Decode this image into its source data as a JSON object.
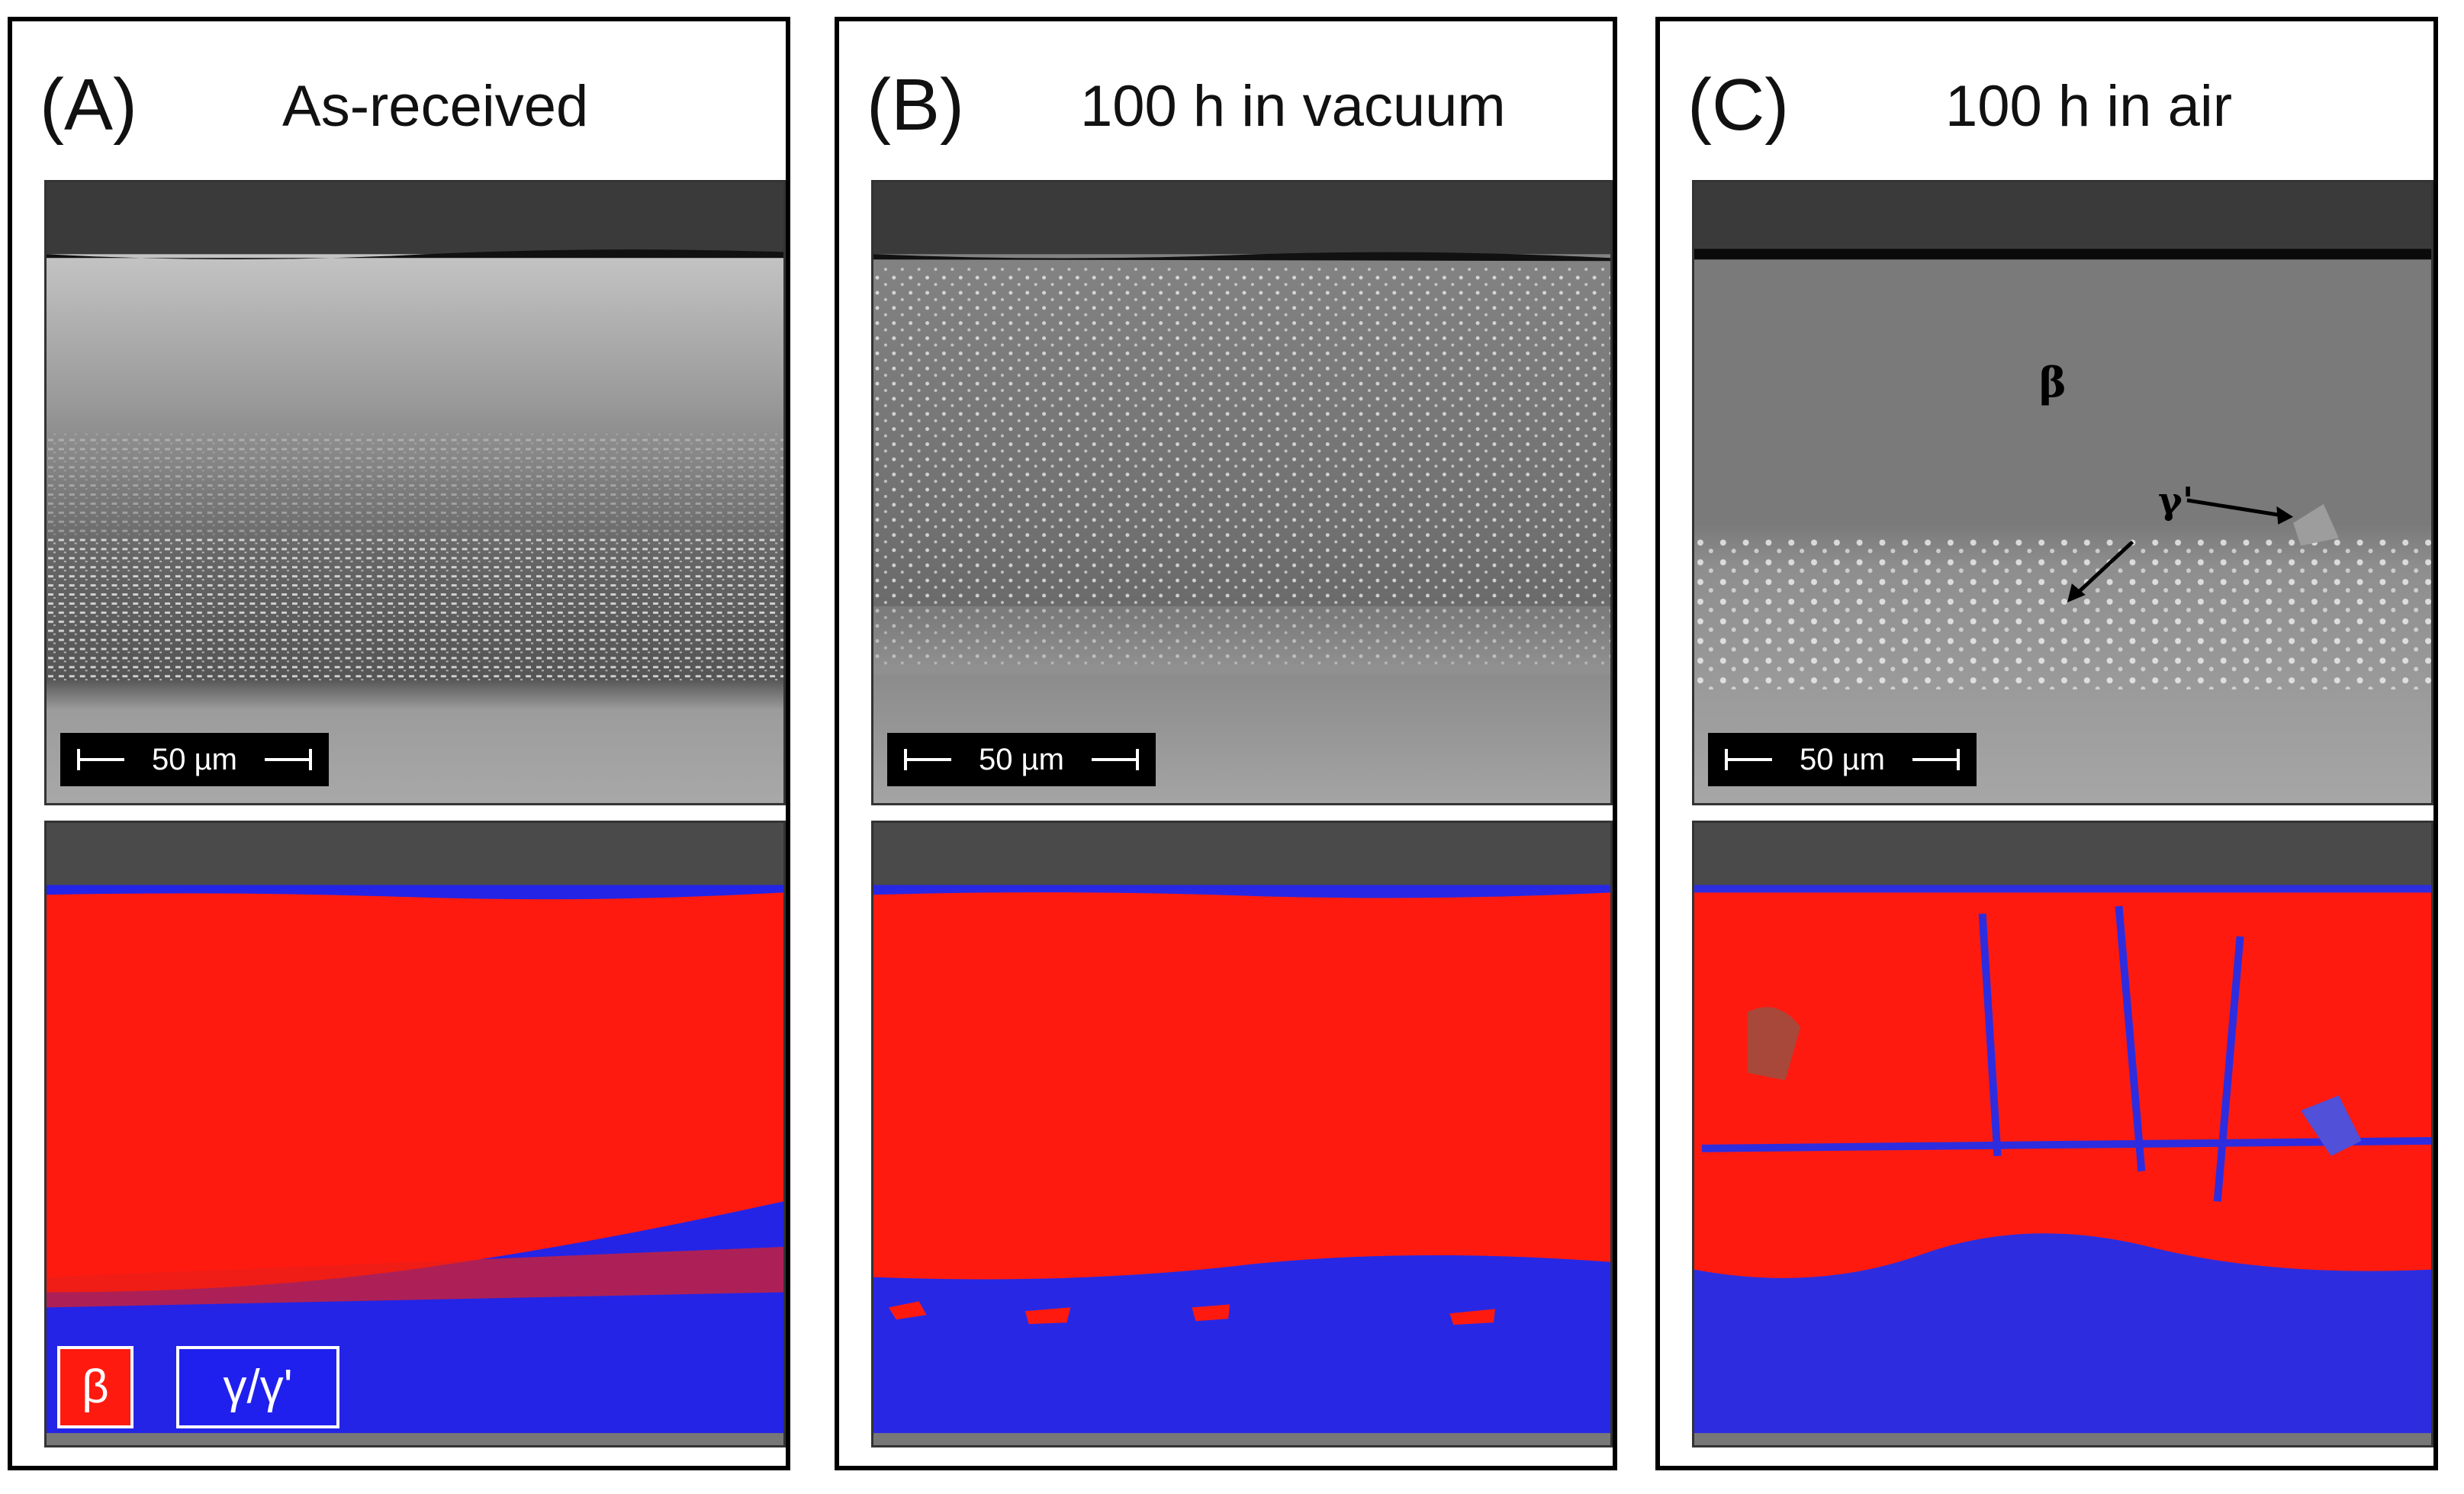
{
  "panels": [
    {
      "letter": "(A)",
      "title": "As-received",
      "scale_bar": "50 µm"
    },
    {
      "letter": "(B)",
      "title": "100 h in vacuum",
      "scale_bar": "50 µm"
    },
    {
      "letter": "(C)",
      "title": "100 h in air",
      "scale_bar": "50 µm"
    }
  ],
  "annotations": {
    "beta": "β",
    "gamma_prime": "γ'"
  },
  "legend": {
    "beta": "β",
    "gamma": "γ/γ'"
  },
  "colors": {
    "beta_phase": "#ff1a10",
    "gamma_phase": "#2020ee",
    "frame": "#000000"
  }
}
